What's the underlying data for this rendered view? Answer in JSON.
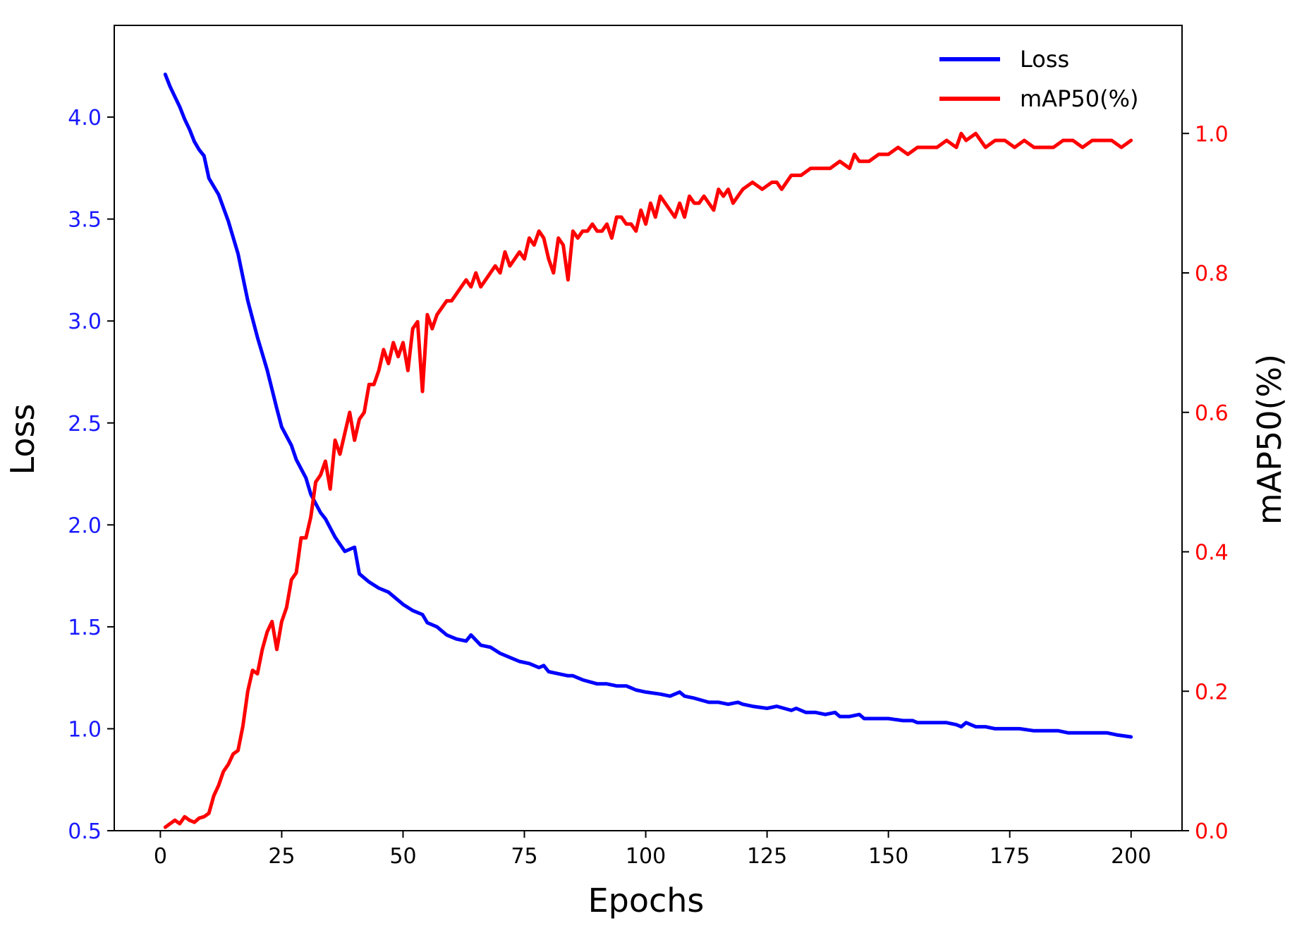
{
  "chart_data": {
    "type": "line",
    "title": "",
    "xlabel": "Epochs",
    "ylabel_left": "Loss",
    "ylabel_right": "mAP50(%)",
    "xlim": [
      -9.5,
      210.5
    ],
    "ylim_left": [
      0.5,
      4.45
    ],
    "ylim_right": [
      0.0,
      1.155
    ],
    "x_ticks": [
      0,
      25,
      50,
      75,
      100,
      125,
      150,
      175,
      200
    ],
    "y_left_ticks": [
      0.5,
      1.0,
      1.5,
      2.0,
      2.5,
      3.0,
      3.5,
      4.0
    ],
    "y_right_ticks": [
      0.0,
      0.2,
      0.4,
      0.6,
      0.8,
      1.0
    ],
    "x_tick_labels": [
      "0",
      "25",
      "50",
      "75",
      "100",
      "125",
      "150",
      "175",
      "200"
    ],
    "y_left_tick_labels": [
      "0.5",
      "1.0",
      "1.5",
      "2.0",
      "2.5",
      "3.0",
      "3.5",
      "4.0"
    ],
    "y_right_tick_labels": [
      "0.0",
      "0.2",
      "0.4",
      "0.6",
      "0.8",
      "1.0"
    ],
    "grid": false,
    "legend_position": "top-right",
    "left_axis_color": "#1a1aff",
    "right_axis_color": "#ff0000",
    "series": [
      {
        "name": "Loss",
        "axis": "left",
        "color": "#0000ff",
        "x": [
          1,
          2,
          3,
          4,
          5,
          6,
          7,
          8,
          9,
          10,
          12,
          14,
          16,
          18,
          20,
          22,
          24,
          25,
          27,
          28,
          30,
          31,
          33,
          34,
          36,
          38,
          39,
          40,
          41,
          43,
          45,
          47,
          50,
          52,
          54,
          55,
          57,
          59,
          61,
          63,
          64,
          66,
          68,
          70,
          72,
          74,
          76,
          78,
          79,
          80,
          82,
          84,
          85,
          87,
          90,
          92,
          94,
          96,
          97,
          98,
          100,
          103,
          105,
          107,
          108,
          110,
          113,
          115,
          117,
          119,
          120,
          122,
          125,
          127,
          130,
          131,
          133,
          135,
          137,
          139,
          140,
          142,
          144,
          145,
          147,
          150,
          153,
          155,
          156,
          158,
          160,
          162,
          164,
          165,
          166,
          168,
          170,
          172,
          175,
          177,
          180,
          182,
          185,
          187,
          190,
          192,
          195,
          197,
          200
        ],
        "y": [
          4.21,
          4.15,
          4.1,
          4.05,
          3.99,
          3.94,
          3.88,
          3.84,
          3.81,
          3.7,
          3.62,
          3.49,
          3.33,
          3.1,
          2.92,
          2.76,
          2.57,
          2.48,
          2.39,
          2.32,
          2.23,
          2.15,
          2.06,
          2.03,
          1.94,
          1.87,
          1.88,
          1.89,
          1.76,
          1.72,
          1.69,
          1.67,
          1.61,
          1.58,
          1.56,
          1.52,
          1.5,
          1.46,
          1.44,
          1.43,
          1.46,
          1.41,
          1.4,
          1.37,
          1.35,
          1.33,
          1.32,
          1.3,
          1.31,
          1.28,
          1.27,
          1.26,
          1.26,
          1.24,
          1.22,
          1.22,
          1.21,
          1.21,
          1.2,
          1.19,
          1.18,
          1.17,
          1.16,
          1.18,
          1.16,
          1.15,
          1.13,
          1.13,
          1.12,
          1.13,
          1.12,
          1.11,
          1.1,
          1.11,
          1.09,
          1.1,
          1.08,
          1.08,
          1.07,
          1.08,
          1.06,
          1.06,
          1.07,
          1.05,
          1.05,
          1.05,
          1.04,
          1.04,
          1.03,
          1.03,
          1.03,
          1.03,
          1.02,
          1.01,
          1.03,
          1.01,
          1.01,
          1.0,
          1.0,
          1.0,
          0.99,
          0.99,
          0.99,
          0.98,
          0.98,
          0.98,
          0.98,
          0.97,
          0.96
        ]
      },
      {
        "name": "mAP50(%)",
        "axis": "right",
        "color": "#ff0000",
        "x": [
          1,
          2,
          3,
          4,
          5,
          6,
          7,
          8,
          9,
          10,
          11,
          12,
          13,
          14,
          15,
          16,
          17,
          18,
          19,
          20,
          21,
          22,
          23,
          24,
          25,
          26,
          27,
          28,
          29,
          30,
          31,
          32,
          33,
          34,
          35,
          36,
          37,
          38,
          39,
          40,
          41,
          42,
          43,
          44,
          45,
          46,
          47,
          48,
          49,
          50,
          51,
          52,
          53,
          54,
          55,
          56,
          57,
          58,
          59,
          60,
          61,
          62,
          63,
          64,
          65,
          66,
          67,
          68,
          69,
          70,
          71,
          72,
          73,
          74,
          75,
          76,
          77,
          78,
          79,
          80,
          81,
          82,
          83,
          84,
          85,
          86,
          87,
          88,
          89,
          90,
          91,
          92,
          93,
          94,
          95,
          96,
          97,
          98,
          99,
          100,
          101,
          102,
          103,
          104,
          105,
          106,
          107,
          108,
          109,
          110,
          111,
          112,
          113,
          114,
          115,
          116,
          117,
          118,
          119,
          120,
          122,
          124,
          126,
          127,
          128,
          130,
          132,
          134,
          136,
          138,
          140,
          142,
          143,
          144,
          146,
          148,
          150,
          152,
          154,
          156,
          158,
          160,
          162,
          164,
          165,
          166,
          168,
          170,
          172,
          174,
          176,
          178,
          180,
          182,
          184,
          186,
          188,
          190,
          192,
          194,
          196,
          198,
          200
        ],
        "y": [
          0.005,
          0.01,
          0.015,
          0.01,
          0.02,
          0.015,
          0.012,
          0.018,
          0.02,
          0.025,
          0.05,
          0.065,
          0.085,
          0.095,
          0.11,
          0.115,
          0.15,
          0.2,
          0.23,
          0.225,
          0.26,
          0.285,
          0.3,
          0.26,
          0.3,
          0.32,
          0.36,
          0.37,
          0.42,
          0.42,
          0.45,
          0.5,
          0.51,
          0.53,
          0.49,
          0.56,
          0.54,
          0.57,
          0.6,
          0.56,
          0.59,
          0.6,
          0.64,
          0.64,
          0.66,
          0.69,
          0.67,
          0.7,
          0.68,
          0.7,
          0.66,
          0.72,
          0.73,
          0.63,
          0.74,
          0.72,
          0.74,
          0.75,
          0.76,
          0.76,
          0.77,
          0.78,
          0.79,
          0.78,
          0.8,
          0.78,
          0.79,
          0.8,
          0.81,
          0.8,
          0.83,
          0.81,
          0.82,
          0.83,
          0.82,
          0.85,
          0.84,
          0.86,
          0.85,
          0.82,
          0.8,
          0.85,
          0.84,
          0.79,
          0.86,
          0.85,
          0.86,
          0.86,
          0.87,
          0.86,
          0.86,
          0.87,
          0.85,
          0.88,
          0.88,
          0.87,
          0.87,
          0.86,
          0.89,
          0.87,
          0.9,
          0.88,
          0.91,
          0.9,
          0.89,
          0.88,
          0.9,
          0.88,
          0.91,
          0.9,
          0.9,
          0.91,
          0.9,
          0.89,
          0.92,
          0.91,
          0.92,
          0.9,
          0.91,
          0.92,
          0.93,
          0.92,
          0.93,
          0.93,
          0.92,
          0.94,
          0.94,
          0.95,
          0.95,
          0.95,
          0.96,
          0.95,
          0.97,
          0.96,
          0.96,
          0.97,
          0.97,
          0.98,
          0.97,
          0.98,
          0.98,
          0.98,
          0.99,
          0.98,
          1.0,
          0.99,
          1.0,
          0.98,
          0.99,
          0.99,
          0.98,
          0.99,
          0.98,
          0.98,
          0.98,
          0.99,
          0.99,
          0.98,
          0.99,
          0.99,
          0.99,
          0.98,
          0.99
        ]
      }
    ]
  }
}
